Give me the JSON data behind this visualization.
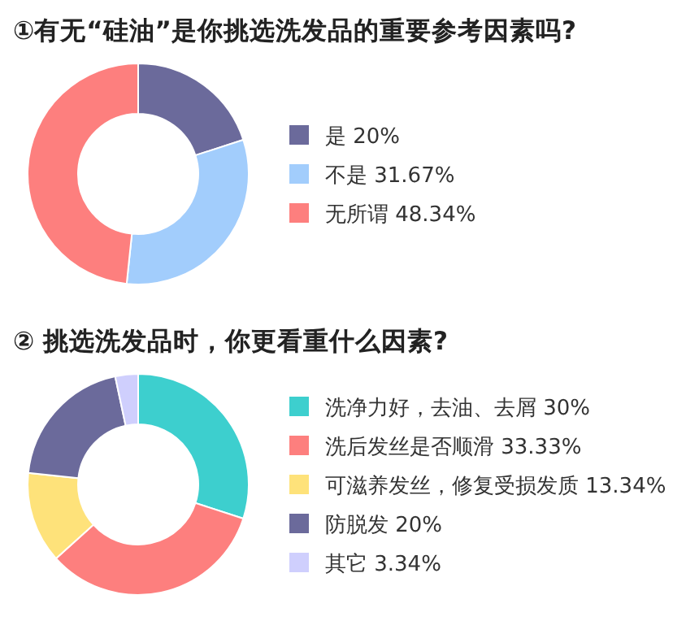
{
  "chart_data": [
    {
      "type": "donut",
      "title": "①有无“硅油”是你挑选洗发品的重要参考因素吗?",
      "categories": [
        "是 20%",
        "不是 31.67%",
        "无所谓 48.34%"
      ],
      "values": [
        20,
        31.67,
        48.34
      ],
      "colors": [
        "#6b6a9b",
        "#a2cdfc",
        "#fd7f7e"
      ],
      "legend": "right"
    },
    {
      "type": "donut",
      "title": "② 挑选洗发品时，你更看重什么因素?",
      "categories": [
        "洗净力好，去油、去屑 30%",
        "洗后发丝是否顺滑 33.33%",
        "可滋养发丝，修复受损发质 13.34%",
        "防脱发 20%",
        "其它 3.34%"
      ],
      "values": [
        30,
        33.33,
        13.34,
        20,
        3.34
      ],
      "colors": [
        "#3dcfce",
        "#fd7f7e",
        "#fee27a",
        "#6b6a9b",
        "#cfcffd"
      ],
      "legend": "right"
    }
  ]
}
